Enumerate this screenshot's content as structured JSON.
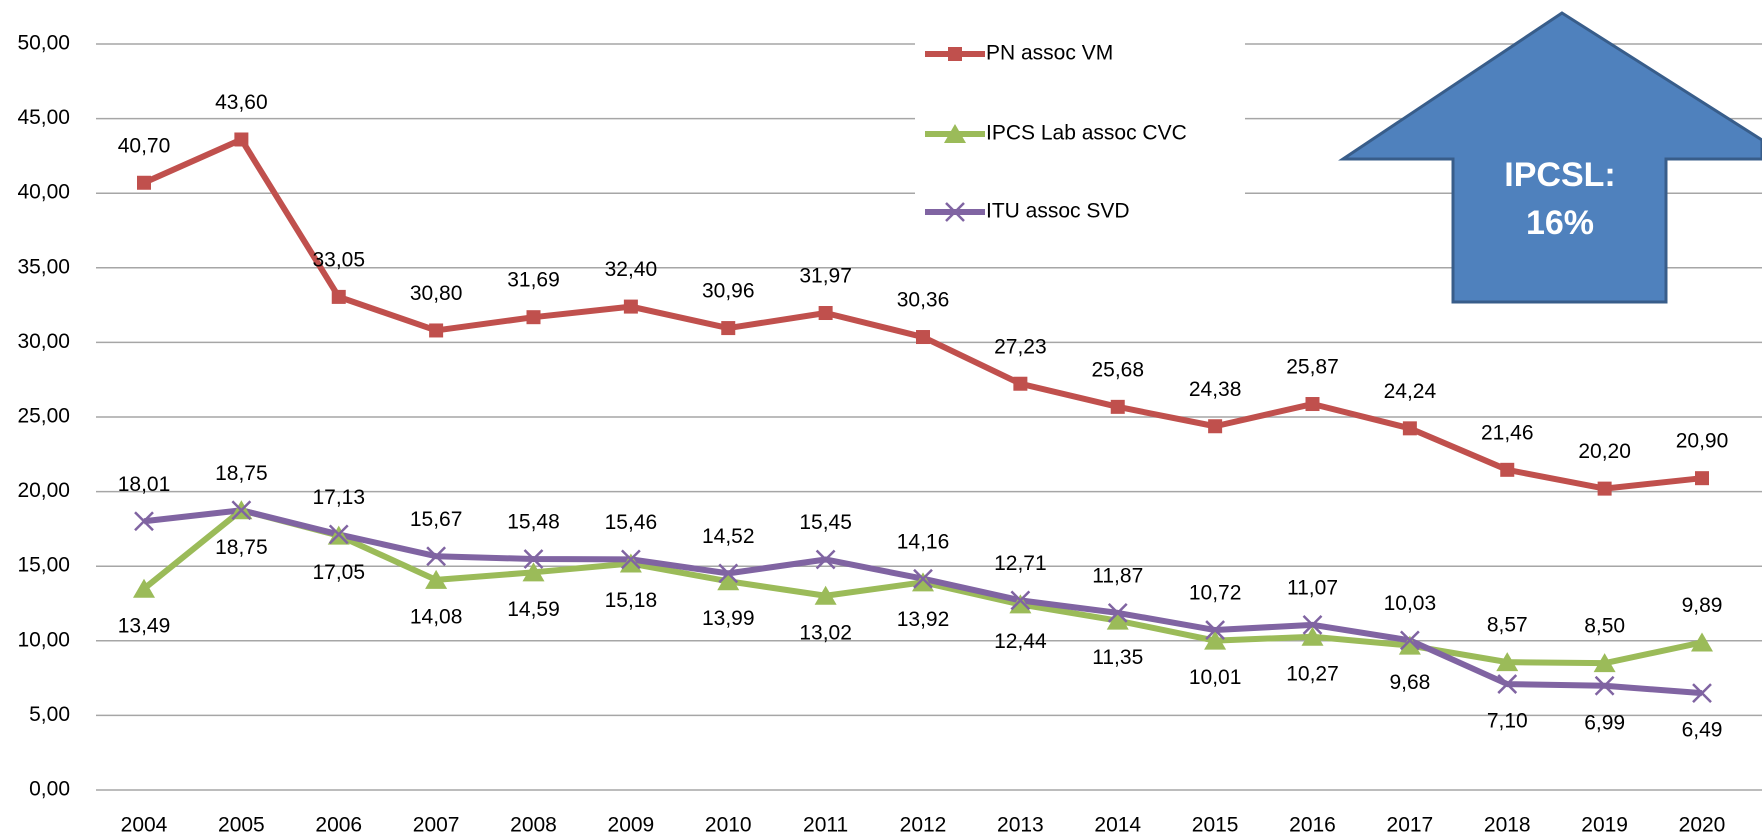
{
  "chart_data": {
    "type": "line",
    "categories": [
      "2004",
      "2005",
      "2006",
      "2007",
      "2008",
      "2009",
      "2010",
      "2011",
      "2012",
      "2013",
      "2014",
      "2015",
      "2016",
      "2017",
      "2018",
      "2019",
      "2020"
    ],
    "series": [
      {
        "name": "PN assoc VM",
        "color": "#c0504d",
        "marker": "square",
        "values": [
          40.7,
          43.6,
          33.05,
          30.8,
          31.69,
          32.4,
          30.96,
          31.97,
          30.36,
          27.23,
          25.68,
          24.38,
          25.87,
          24.24,
          21.46,
          20.2,
          20.9
        ],
        "value_labels": [
          "40,70",
          "43,60",
          "33,05",
          "30,80",
          "31,69",
          "32,40",
          "30,96",
          "31,97",
          "30,36",
          "27,23",
          "25,68",
          "24,38",
          "25,87",
          "24,24",
          "21,46",
          "20,20",
          "20,90"
        ]
      },
      {
        "name": "IPCS Lab assoc CVC",
        "color": "#9bbb59",
        "marker": "triangle",
        "values": [
          13.49,
          18.75,
          17.05,
          14.08,
          14.59,
          15.18,
          13.99,
          13.02,
          13.92,
          12.44,
          11.35,
          10.01,
          10.27,
          9.68,
          8.57,
          8.5,
          9.89
        ],
        "value_labels": [
          "13,49",
          "18,75",
          "17,05",
          "14,08",
          "14,59",
          "15,18",
          "13,99",
          "13,02",
          "13,92",
          "12,44",
          "11,35",
          "10,01",
          "10,27",
          "9,68",
          "8,57",
          "8,50",
          "9,89"
        ]
      },
      {
        "name": "ITU assoc SVD",
        "color": "#8064a2",
        "marker": "x",
        "values": [
          18.01,
          18.75,
          17.13,
          15.67,
          15.48,
          15.46,
          14.52,
          15.45,
          14.16,
          12.71,
          11.87,
          10.72,
          11.07,
          10.03,
          7.1,
          6.99,
          6.49
        ],
        "value_labels": [
          "18,01",
          "18,75",
          "17,13",
          "15,67",
          "15,48",
          "15,46",
          "14,52",
          "15,45",
          "14,16",
          "12,71",
          "11,87",
          "10,72",
          "11,07",
          "10,03",
          "7,10",
          "6,99",
          "6,49"
        ]
      }
    ],
    "ylim": [
      0,
      50
    ],
    "yticks": [
      {
        "value": 0,
        "label": "0,00"
      },
      {
        "value": 5,
        "label": "5,00"
      },
      {
        "value": 10,
        "label": "10,00"
      },
      {
        "value": 15,
        "label": "15,00"
      },
      {
        "value": 20,
        "label": "20,00"
      },
      {
        "value": 25,
        "label": "25,00"
      },
      {
        "value": 30,
        "label": "30,00"
      },
      {
        "value": 35,
        "label": "35,00"
      },
      {
        "value": 40,
        "label": "40,00"
      },
      {
        "value": 45,
        "label": "45,00"
      },
      {
        "value": 50,
        "label": "50,00"
      }
    ],
    "grid": true,
    "annotation": [
      "IPCSL:",
      "16%"
    ]
  }
}
